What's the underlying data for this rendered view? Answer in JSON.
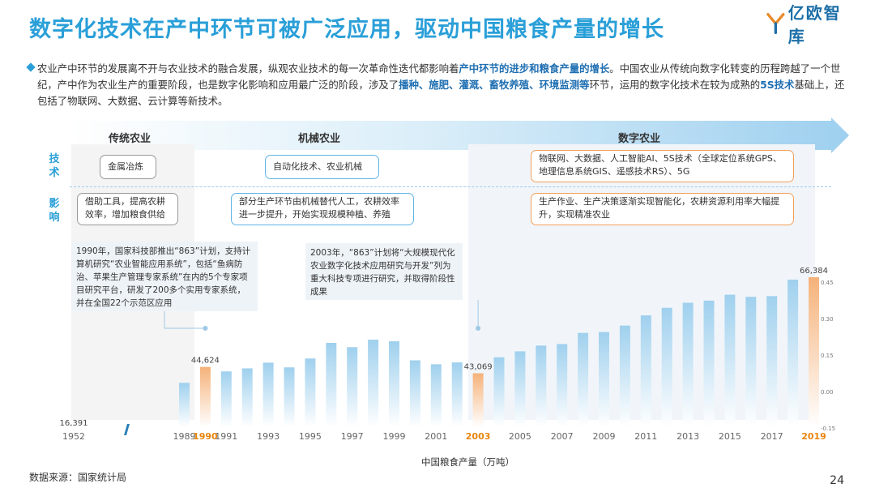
{
  "title": "数字化技术在产中环节可被广泛应用，驱动中国粮食产量的增长",
  "logo": {
    "text": "亿欧智库",
    "icon": "yiou-logo-icon"
  },
  "intro": {
    "p1": "农业产中环节的发展离不开与农业技术的融合发展，纵观农业技术的每一次革命性迭代都影响着",
    "h1": "产中环节的进步和粮食产量的增长",
    "p2": "。中国农业从传统向数字化转变的历程跨越了一个世纪，产中作为农业生产的重要阶段，也是数字化影响和应用最广泛的阶段，涉及了",
    "h2": "播种、施肥、灌溉、畜牧养殖、环境监测等",
    "p3": "环节，运用的数字化技术在较为成熟的",
    "h3": "5S技术",
    "p4": "基础上，还包括了物联网、大数据、云计算等新技术。"
  },
  "eras": {
    "traditional": "传统农业",
    "mechanical": "机械农业",
    "digital": "数字农业"
  },
  "rows": {
    "tech": "技术",
    "impact": "影响"
  },
  "tech": {
    "traditional": "金属冶炼",
    "mechanical": "自动化技术、农业机械",
    "digital": "物联网、大数据、人工智能AI、5S技术（全球定位系统GPS、地理信息系统GIS、遥感技术RS）、5G"
  },
  "impact": {
    "traditional": "借助工具，提高农耕效率，增加粮食供给",
    "mechanical": "部分生产环节由机械替代人工，农耕效率进一步提升，开始实现规模种植、养殖",
    "digital": "生产作业、生产决策逐渐实现智能化，农耕资源利用率大幅提升，实现精准农业"
  },
  "notes": {
    "n1990": "1990年，国家科技部推出“863”计划，支持计算机研究“农业智能应用系统”，包括“鱼病防治、苹果生产管理专家系统”在内的5个专家项目研究平台，研发了200多个实用专家系统，并在全国22个示范区应用",
    "n2003": "2003年，“863”计划将“大规模现代化农业数字化技术应用研究与开发”列为重大科技专项进行研究，并取得阶段性成果"
  },
  "colors": {
    "bar": "#9fd0ee",
    "highlight": "#f5b27a",
    "accent": "#2a9fd8",
    "label_highlight": "#e8850c"
  },
  "chart_data": {
    "type": "bar",
    "xlabel": "中国粮食产量（万吨）",
    "right_axis_ticks": [
      "0.45",
      "0.30",
      "0.15",
      "0.00",
      "-0.15"
    ],
    "categories": [
      "1952",
      "1989",
      "1990",
      "1991",
      "1992",
      "1993",
      "1994",
      "1995",
      "1996",
      "1997",
      "1998",
      "1999",
      "2000",
      "2001",
      "2002",
      "2003",
      "2004",
      "2005",
      "2006",
      "2007",
      "2008",
      "2009",
      "2010",
      "2011",
      "2012",
      "2013",
      "2014",
      "2015",
      "2016",
      "2017",
      "2018",
      "2019"
    ],
    "tick_labels": [
      "1952",
      "1989",
      "1990",
      "1991",
      "1993",
      "1995",
      "1997",
      "1999",
      "2001",
      "2003",
      "2005",
      "2007",
      "2009",
      "2011",
      "2013",
      "2015",
      "2017",
      "2019"
    ],
    "highlight_years": [
      "1990",
      "2003",
      "2019"
    ],
    "values": [
      16391,
      40755,
      44624,
      43529,
      44266,
      45649,
      44510,
      46662,
      50454,
      49417,
      51230,
      50839,
      46218,
      45264,
      45706,
      43069,
      46947,
      48402,
      49804,
      50160,
      52871,
      53082,
      54648,
      57121,
      58958,
      60194,
      60703,
      62144,
      61625,
      61791,
      65789,
      66384
    ],
    "data_labels": {
      "1952": "16,391",
      "1990": "44,624",
      "2003": "43,069",
      "2019": "66,384"
    }
  },
  "source": "数据来源：国家统计局",
  "page_number": "24"
}
